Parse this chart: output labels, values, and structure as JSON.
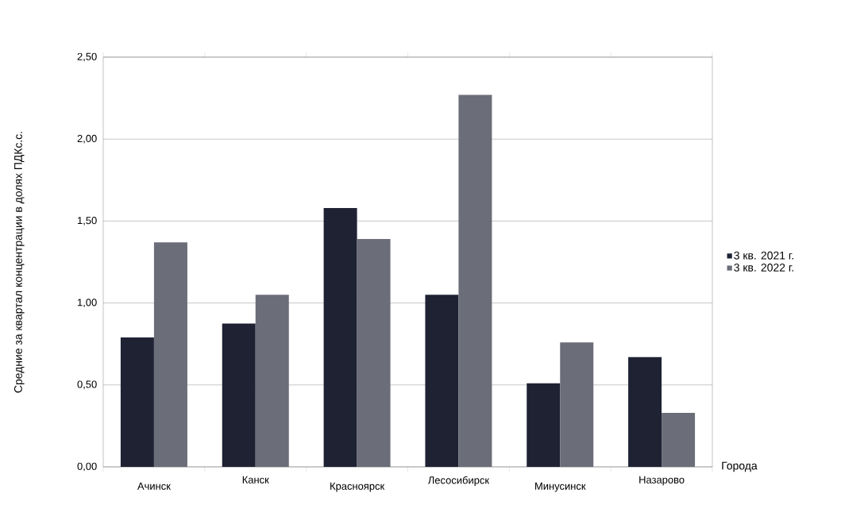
{
  "chart_data": {
    "type": "bar",
    "xlabel": "Города",
    "ylabel": "Средние за квартал концентрации в долях ПДКс.с.",
    "categories": [
      "Ачинск",
      "Канск",
      "Красноярск",
      "Лесосибирск",
      "Минусинск",
      "Назарово"
    ],
    "series": [
      {
        "name": "3 кв. 2021 г.",
        "color": "#1e2233",
        "values": [
          0.79,
          0.875,
          1.58,
          1.05,
          0.51,
          0.67
        ]
      },
      {
        "name": "3 кв. 2022 г.",
        "color": "#6b6d78",
        "values": [
          1.37,
          1.05,
          1.39,
          2.27,
          0.76,
          0.33
        ]
      }
    ],
    "ylim": [
      0,
      2.5
    ],
    "yticks": [
      {
        "value": 0,
        "label": "0,00"
      },
      {
        "value": 0.5,
        "label": "0,50"
      },
      {
        "value": 1,
        "label": "1,00"
      },
      {
        "value": 1.5,
        "label": "1,50"
      },
      {
        "value": 2,
        "label": "2,00"
      },
      {
        "value": 2.5,
        "label": "2,50"
      }
    ],
    "grid": "y",
    "legend": "right"
  }
}
